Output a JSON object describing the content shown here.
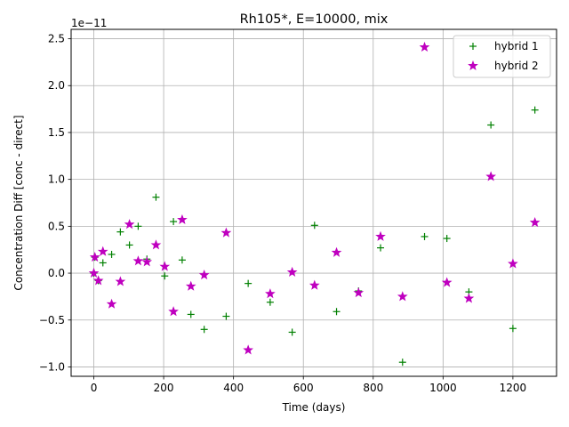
{
  "chart_data": {
    "type": "scatter",
    "title": "Rh105*, E=10000, mix",
    "xlabel": "Time (days)",
    "ylabel": "Concentration Diff [conc - direct]",
    "y_offset_label": "1e−11",
    "xlim": [
      -65,
      1325
    ],
    "ylim": [
      -1.1,
      2.6
    ],
    "y_scale_factor": 1e-11,
    "x_ticks": [
      0,
      200,
      400,
      600,
      800,
      1000,
      1200
    ],
    "x_tick_labels": [
      "0",
      "200",
      "400",
      "600",
      "800",
      "1000",
      "1200"
    ],
    "y_ticks": [
      -1.0,
      -0.5,
      0.0,
      0.5,
      1.0,
      1.5,
      2.0,
      2.5
    ],
    "y_tick_labels": [
      "−1.0",
      "−0.5",
      "0.0",
      "0.5",
      "1.0",
      "1.5",
      "2.0",
      "2.5"
    ],
    "grid": true,
    "legend_position": "top-right",
    "series": [
      {
        "name": "hybrid 1",
        "marker": "plus",
        "color": "#008000",
        "x": [
          0,
          3,
          13,
          26,
          51,
          76,
          102,
          127,
          152,
          178,
          203,
          228,
          253,
          278,
          316,
          379,
          442,
          505,
          568,
          632,
          695,
          758,
          821,
          884,
          947,
          1011,
          1074,
          1137,
          1200,
          1263
        ],
        "y": [
          0.0,
          0.17,
          -0.08,
          0.11,
          0.2,
          0.44,
          0.3,
          0.5,
          0.15,
          0.81,
          -0.03,
          0.55,
          0.14,
          -0.44,
          -0.6,
          -0.46,
          -0.11,
          -0.31,
          -0.63,
          0.51,
          -0.41,
          -0.19,
          0.27,
          -0.95,
          0.39,
          0.37,
          -0.2,
          1.58,
          -0.59,
          1.74
        ]
      },
      {
        "name": "hybrid 2",
        "marker": "star",
        "color": "#bf00bf",
        "x": [
          0,
          3,
          13,
          26,
          51,
          76,
          102,
          127,
          152,
          178,
          203,
          228,
          253,
          278,
          316,
          379,
          442,
          505,
          568,
          632,
          695,
          758,
          821,
          884,
          947,
          1011,
          1074,
          1137,
          1200,
          1263
        ],
        "y": [
          0.0,
          0.17,
          -0.08,
          0.23,
          -0.33,
          -0.09,
          0.52,
          0.13,
          0.12,
          0.3,
          0.07,
          -0.41,
          0.57,
          -0.14,
          -0.02,
          0.43,
          -0.82,
          -0.22,
          0.01,
          -0.13,
          0.22,
          -0.21,
          0.39,
          -0.25,
          2.41,
          -0.1,
          -0.27,
          1.03,
          0.1,
          0.54
        ]
      }
    ]
  }
}
